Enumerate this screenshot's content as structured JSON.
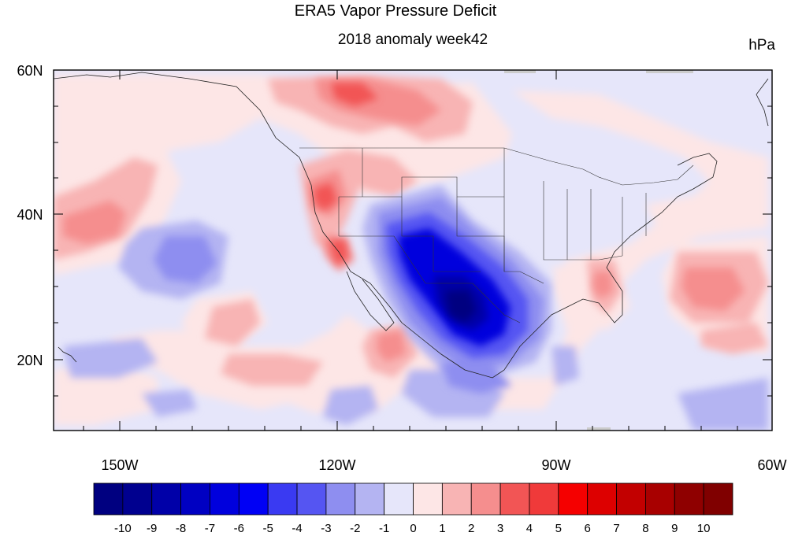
{
  "title": "ERA5 Vapor Pressure Deficit",
  "subtitle": "2018 anomaly week42",
  "units": "hPa",
  "map": {
    "lon_ticks": [
      "150W",
      "120W",
      "90W",
      "60W"
    ],
    "lat_ticks": [
      "60N",
      "40N",
      "20N"
    ],
    "lon_range": [
      -159,
      -60
    ],
    "lat_range": [
      10,
      60
    ]
  },
  "colorbar": {
    "labels": [
      "-10",
      "-9",
      "-8",
      "-7",
      "-6",
      "-5",
      "-4",
      "-3",
      "-2",
      "-1",
      "0",
      "1",
      "2",
      "3",
      "4",
      "5",
      "6",
      "7",
      "8",
      "9",
      "10"
    ],
    "colors": [
      "#000080",
      "#00008f",
      "#0000a8",
      "#0000c2",
      "#0000dd",
      "#0000f5",
      "#3a3af2",
      "#5555f2",
      "#8e8ef0",
      "#b4b4f2",
      "#e6e6fa",
      "#fde6e6",
      "#f8b4b4",
      "#f58e8e",
      "#f25555",
      "#f03a3a",
      "#f50000",
      "#dd0000",
      "#c20000",
      "#a80000",
      "#8f0000",
      "#800000"
    ]
  },
  "colors": {
    "background_near_zero": "#e6e6fa",
    "negative_accent": "#0000dd",
    "positive_accent": "#f03a3a"
  }
}
